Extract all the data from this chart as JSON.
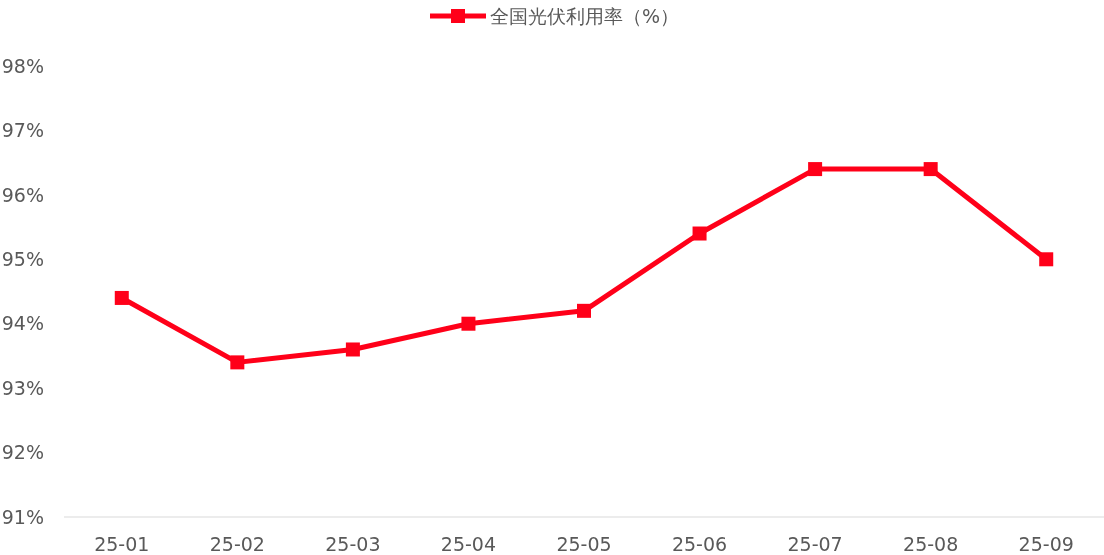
{
  "chart_data": {
    "type": "line",
    "categories": [
      "25-01",
      "25-02",
      "25-03",
      "25-04",
      "25-05",
      "25-06",
      "25-07",
      "25-08",
      "25-09"
    ],
    "series": [
      {
        "name": "全国光伏利用率（%）",
        "color": "#ff0019",
        "values": [
          94.4,
          93.4,
          93.6,
          94.0,
          94.2,
          95.4,
          96.4,
          96.4,
          95.0
        ]
      }
    ],
    "ylim": [
      91,
      98
    ],
    "yticks": [
      {
        "value": 91,
        "label": "91%"
      },
      {
        "value": 92,
        "label": "92%"
      },
      {
        "value": 93,
        "label": "93%"
      },
      {
        "value": 94,
        "label": "94%"
      },
      {
        "value": 95,
        "label": "95%"
      },
      {
        "value": 96,
        "label": "96%"
      },
      {
        "value": 97,
        "label": "97%"
      },
      {
        "value": 98,
        "label": "98%"
      }
    ],
    "grid": false,
    "legend": "top",
    "marker": "square",
    "line_style": "solid"
  }
}
